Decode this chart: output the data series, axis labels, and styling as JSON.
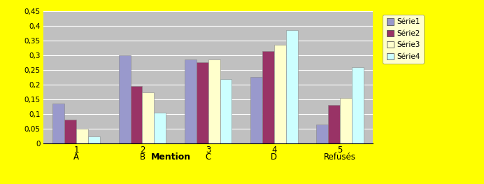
{
  "x_labels_top": [
    "1",
    "2",
    "3",
    "4",
    "5"
  ],
  "x_labels_bottom": [
    "A",
    "B",
    "C",
    "D",
    "Refusés"
  ],
  "x_label_extra": "Mention",
  "series": {
    "Série1": [
      0.135,
      0.3,
      0.285,
      0.225,
      0.065
    ],
    "Série2": [
      0.08,
      0.195,
      0.275,
      0.315,
      0.13
    ],
    "Série3": [
      0.05,
      0.175,
      0.285,
      0.335,
      0.155
    ],
    "Série4": [
      0.025,
      0.105,
      0.22,
      0.385,
      0.26
    ]
  },
  "colors": {
    "Série1": "#9999CC",
    "Série2": "#993366",
    "Série3": "#FFFFCC",
    "Série4": "#CCFFFF"
  },
  "ylim": [
    0,
    0.45
  ],
  "yticks": [
    0,
    0.05,
    0.1,
    0.15,
    0.2,
    0.25,
    0.3,
    0.35,
    0.4,
    0.45
  ],
  "ytick_labels": [
    "0",
    "0,05",
    "0,1",
    "0,15",
    "0,2",
    "0,25",
    "0,3",
    "0,35",
    "0,4",
    "0,45"
  ],
  "background_color": "#C0C0C0",
  "fig_bg_color": "#FFFF00",
  "grid_color": "#FFFFFF",
  "bar_width": 0.18
}
